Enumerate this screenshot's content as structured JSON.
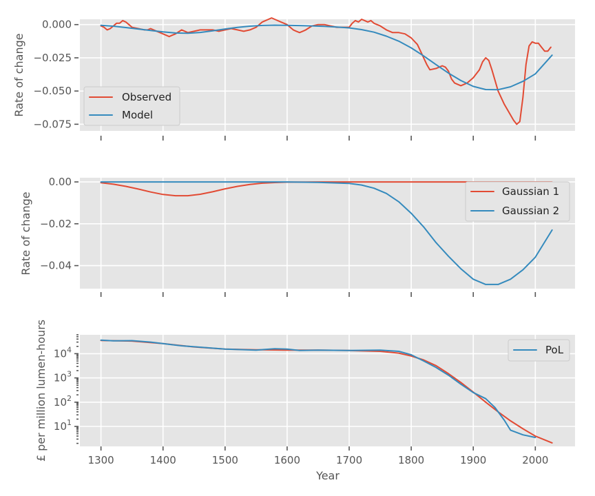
{
  "chart_data": [
    {
      "type": "line",
      "panel": "top",
      "ylabel": "Rate of change",
      "xlim": [
        1266,
        2064
      ],
      "ylim": [
        -0.08,
        0.004
      ],
      "yticks": [
        0.0,
        -0.025,
        -0.05,
        -0.075
      ],
      "ytick_labels": [
        "0.000",
        "−0.025",
        "−0.050",
        "−0.075"
      ],
      "xticks": [
        1300,
        1400,
        1500,
        1600,
        1700,
        1800,
        1900,
        2000
      ],
      "xtick_labels": [
        "",
        "",
        "",
        "",
        "",
        "",
        "",
        ""
      ],
      "grid": true,
      "legend": "lower-left",
      "series": [
        {
          "name": "Observed",
          "color": "#E24A33",
          "x": [
            1300,
            1305,
            1310,
            1315,
            1320,
            1325,
            1330,
            1335,
            1340,
            1345,
            1350,
            1360,
            1370,
            1375,
            1380,
            1390,
            1400,
            1410,
            1415,
            1420,
            1430,
            1440,
            1450,
            1460,
            1470,
            1480,
            1490,
            1500,
            1510,
            1520,
            1530,
            1540,
            1550,
            1560,
            1570,
            1575,
            1580,
            1590,
            1600,
            1605,
            1610,
            1615,
            1620,
            1625,
            1630,
            1640,
            1650,
            1660,
            1670,
            1680,
            1690,
            1700,
            1705,
            1710,
            1715,
            1720,
            1725,
            1730,
            1735,
            1740,
            1750,
            1760,
            1770,
            1780,
            1790,
            1800,
            1810,
            1815,
            1820,
            1825,
            1830,
            1840,
            1850,
            1855,
            1860,
            1865,
            1870,
            1880,
            1890,
            1900,
            1910,
            1915,
            1920,
            1925,
            1930,
            1935,
            1940,
            1950,
            1960,
            1965,
            1970,
            1975,
            1980,
            1985,
            1990,
            1995,
            2000,
            2005,
            2010,
            2015,
            2020,
            2025
          ],
          "y": [
            -0.001,
            -0.002,
            -0.004,
            -0.003,
            -0.001,
            0.001,
            0.001,
            0.003,
            0.002,
            0.0,
            -0.002,
            -0.003,
            -0.004,
            -0.004,
            -0.003,
            -0.005,
            -0.007,
            -0.009,
            -0.008,
            -0.007,
            -0.004,
            -0.006,
            -0.005,
            -0.004,
            -0.004,
            -0.004,
            -0.005,
            -0.004,
            -0.003,
            -0.004,
            -0.005,
            -0.004,
            -0.002,
            0.002,
            0.004,
            0.005,
            0.004,
            0.002,
            0.0,
            -0.002,
            -0.004,
            -0.005,
            -0.006,
            -0.005,
            -0.004,
            -0.001,
            0.0,
            0.0,
            -0.001,
            -0.002,
            -0.002,
            -0.002,
            0.001,
            0.003,
            0.002,
            0.004,
            0.003,
            0.002,
            0.003,
            0.001,
            -0.001,
            -0.004,
            -0.006,
            -0.006,
            -0.007,
            -0.01,
            -0.015,
            -0.02,
            -0.025,
            -0.03,
            -0.034,
            -0.033,
            -0.031,
            -0.032,
            -0.035,
            -0.041,
            -0.044,
            -0.046,
            -0.044,
            -0.04,
            -0.034,
            -0.028,
            -0.025,
            -0.027,
            -0.034,
            -0.042,
            -0.05,
            -0.06,
            -0.068,
            -0.072,
            -0.075,
            -0.073,
            -0.055,
            -0.03,
            -0.016,
            -0.013,
            -0.014,
            -0.014,
            -0.017,
            -0.02,
            -0.02,
            -0.017
          ]
        },
        {
          "name": "Model",
          "color": "#348ABD",
          "x": [
            1300,
            1320,
            1340,
            1360,
            1380,
            1400,
            1420,
            1440,
            1460,
            1480,
            1500,
            1520,
            1540,
            1560,
            1580,
            1600,
            1620,
            1640,
            1660,
            1680,
            1700,
            1720,
            1740,
            1760,
            1780,
            1800,
            1820,
            1840,
            1860,
            1880,
            1900,
            1920,
            1940,
            1960,
            1980,
            2000,
            2027
          ],
          "y": [
            -0.0005,
            -0.0012,
            -0.0022,
            -0.0033,
            -0.0044,
            -0.0055,
            -0.0063,
            -0.0065,
            -0.0059,
            -0.0047,
            -0.0033,
            -0.0021,
            -0.0012,
            -0.0006,
            -0.0004,
            -0.0005,
            -0.0007,
            -0.001,
            -0.0013,
            -0.0018,
            -0.0025,
            -0.0038,
            -0.0057,
            -0.0087,
            -0.0125,
            -0.0175,
            -0.0236,
            -0.0301,
            -0.0365,
            -0.0421,
            -0.0465,
            -0.0489,
            -0.049,
            -0.0468,
            -0.0427,
            -0.0371,
            -0.023
          ]
        }
      ]
    },
    {
      "type": "line",
      "panel": "middle",
      "ylabel": "Rate of change",
      "xlim": [
        1266,
        2064
      ],
      "ylim": [
        -0.051,
        0.002
      ],
      "yticks": [
        0.0,
        -0.02,
        -0.04
      ],
      "ytick_labels": [
        "0.00",
        "−0.02",
        "−0.04"
      ],
      "xticks": [
        1300,
        1400,
        1500,
        1600,
        1700,
        1800,
        1900,
        2000
      ],
      "xtick_labels": [
        "",
        "",
        "",
        "",
        "",
        "",
        "",
        ""
      ],
      "grid": true,
      "legend": "upper-right",
      "series": [
        {
          "name": "Gaussian 1",
          "color": "#E24A33",
          "x": [
            1300,
            1320,
            1340,
            1360,
            1380,
            1400,
            1420,
            1440,
            1460,
            1480,
            1500,
            1520,
            1540,
            1560,
            1580,
            1600,
            1650,
            1700,
            1750,
            1800,
            1850,
            1900,
            1950,
            2000,
            2027
          ],
          "y": [
            -0.0004,
            -0.0011,
            -0.0021,
            -0.0034,
            -0.0048,
            -0.006,
            -0.0066,
            -0.0066,
            -0.0059,
            -0.0047,
            -0.0033,
            -0.0021,
            -0.0012,
            -0.0006,
            -0.0003,
            -0.0001,
            0.0,
            0.0,
            0.0,
            0.0,
            0.0,
            0.0,
            0.0,
            0.0,
            0.0
          ]
        },
        {
          "name": "Gaussian 2",
          "color": "#348ABD",
          "x": [
            1300,
            1400,
            1500,
            1550,
            1600,
            1650,
            1700,
            1720,
            1740,
            1760,
            1780,
            1800,
            1820,
            1840,
            1860,
            1880,
            1900,
            1920,
            1940,
            1960,
            1980,
            2000,
            2027
          ],
          "y": [
            0.0,
            0.0,
            0.0,
            0.0,
            0.0,
            -0.0002,
            -0.0007,
            -0.0015,
            -0.003,
            -0.0055,
            -0.0095,
            -0.015,
            -0.0215,
            -0.029,
            -0.0355,
            -0.0415,
            -0.0465,
            -0.049,
            -0.049,
            -0.0465,
            -0.042,
            -0.036,
            -0.023
          ]
        }
      ]
    },
    {
      "type": "line",
      "panel": "bottom",
      "xlabel": "Year",
      "ylabel": "£ per million lumen-hours",
      "yscale": "log",
      "xlim": [
        1266,
        2064
      ],
      "ylim": [
        1.5,
        60000
      ],
      "yticks": [
        10,
        100,
        1000,
        10000
      ],
      "xticks": [
        1300,
        1400,
        1500,
        1600,
        1700,
        1800,
        1900,
        2000
      ],
      "xtick_labels": [
        "1300",
        "1400",
        "1500",
        "1600",
        "1700",
        "1800",
        "1900",
        "2000"
      ],
      "grid": true,
      "legend": "upper-right",
      "series": [
        {
          "name": "",
          "color": "#E24A33",
          "x": [
            1300,
            1350,
            1400,
            1450,
            1500,
            1550,
            1600,
            1650,
            1700,
            1750,
            1780,
            1800,
            1820,
            1840,
            1860,
            1880,
            1900,
            1920,
            1940,
            1960,
            1980,
            2000,
            2027
          ],
          "y": [
            35000,
            33000,
            26000,
            19000,
            15500,
            14500,
            14000,
            14000,
            13500,
            12500,
            10500,
            8000,
            5500,
            3200,
            1500,
            650,
            260,
            100,
            40,
            17,
            8,
            4,
            2.1
          ]
        },
        {
          "name": "PoL",
          "color": "#348ABD",
          "x": [
            1300,
            1320,
            1350,
            1380,
            1400,
            1430,
            1460,
            1500,
            1550,
            1580,
            1600,
            1620,
            1650,
            1700,
            1750,
            1780,
            1800,
            1820,
            1840,
            1860,
            1880,
            1900,
            1920,
            1935,
            1950,
            1960,
            1980,
            2000
          ],
          "y": [
            36000,
            34000,
            34500,
            30000,
            26000,
            21000,
            18500,
            15500,
            14000,
            16000,
            15500,
            13500,
            14000,
            13500,
            14000,
            12500,
            9000,
            5000,
            2700,
            1300,
            550,
            250,
            140,
            60,
            18,
            7,
            4.5,
            3.5
          ]
        }
      ]
    }
  ]
}
